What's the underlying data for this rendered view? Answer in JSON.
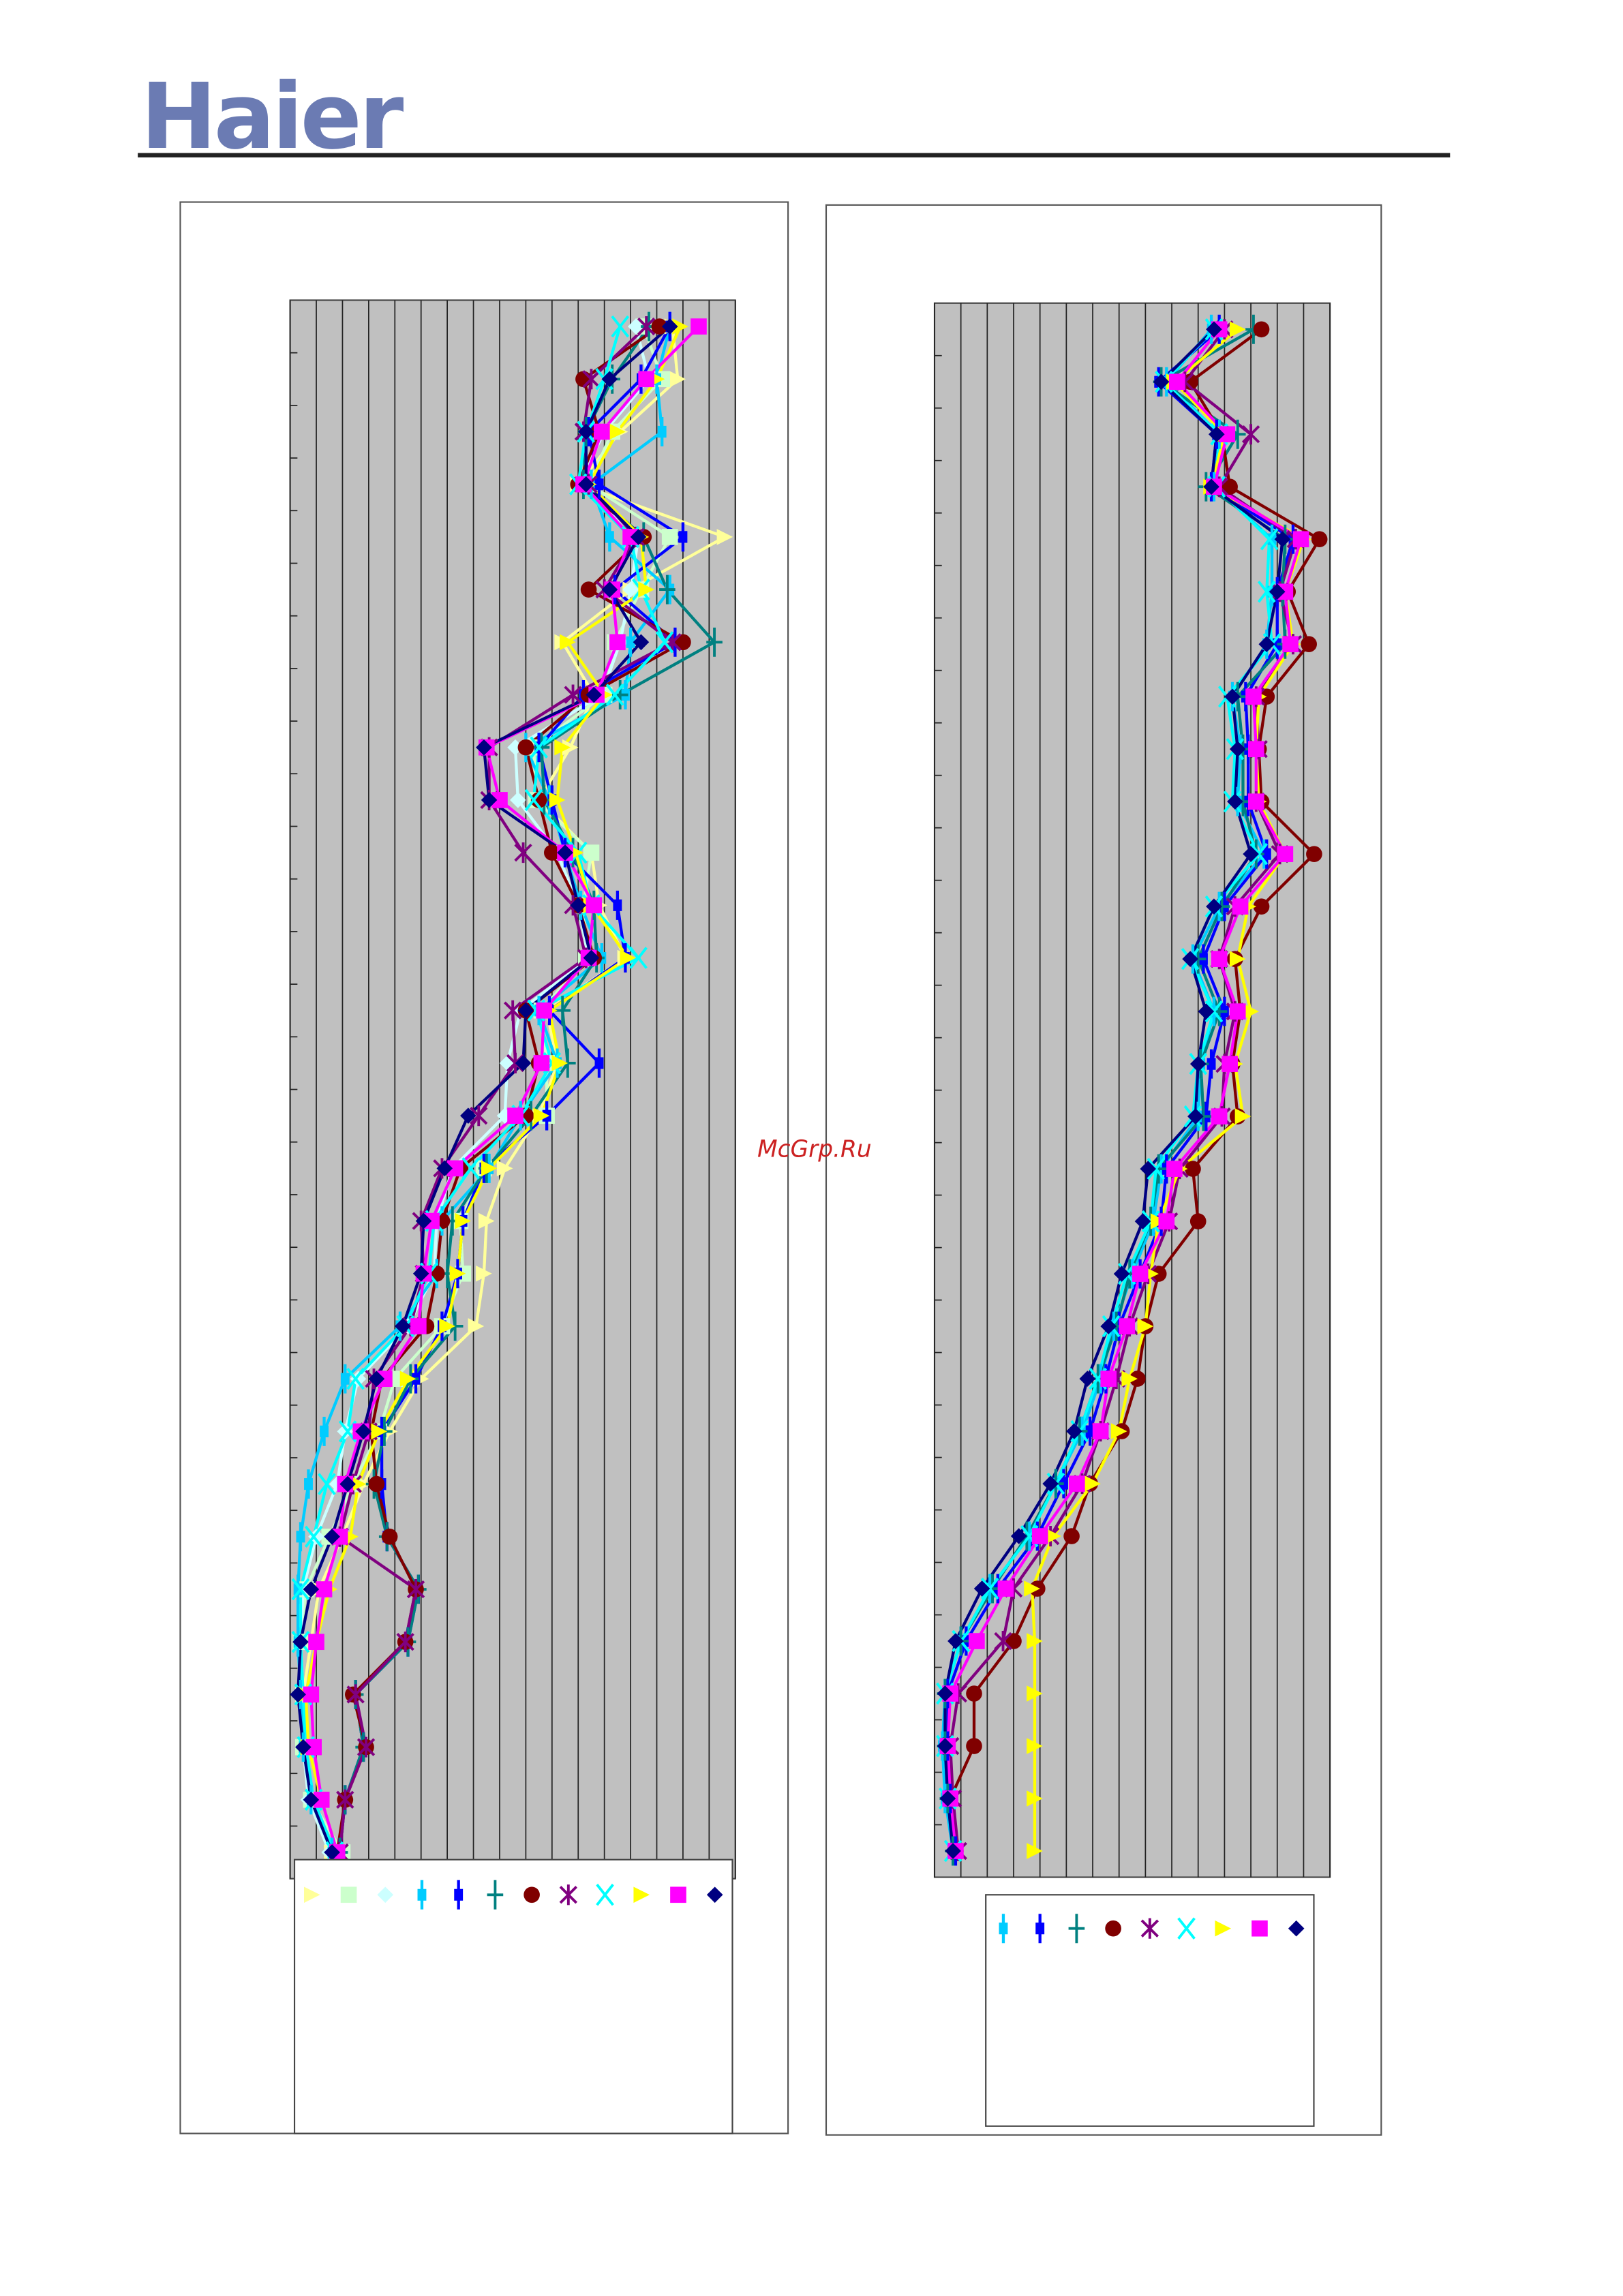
{
  "header": {
    "logo": "Haier"
  },
  "watermark": "McGrp.Ru",
  "chart_data": [
    {
      "type": "line",
      "orientation": "horizontal",
      "grid": true,
      "categories": [
        null,
        null,
        null,
        null,
        null,
        null,
        null,
        null,
        null,
        null,
        null,
        null,
        null,
        null,
        null,
        null,
        null,
        null,
        null,
        null,
        null,
        null,
        null,
        null,
        null,
        null,
        null,
        null,
        null,
        null
      ],
      "xlim": [
        0,
        17
      ],
      "xticks": [
        0,
        1,
        2,
        3,
        4,
        5,
        6,
        7,
        8,
        9,
        10,
        11,
        12,
        13,
        14,
        15,
        16,
        17
      ],
      "series": [
        {
          "color": "#ffff99",
          "marker": "triangle",
          "values": [
            14.6,
            14.8,
            12.6,
            11.0,
            16.6,
            13.0,
            10.4,
            11.6,
            10.7,
            9.5,
            11.5,
            11.8,
            12.8,
            9.8,
            10.2,
            9.5,
            8.2,
            7.5,
            7.4,
            7.1,
            5.0,
            3.8,
            2.8,
            2.0,
            1.1,
            0.8,
            0.5,
            0.6,
            0.8,
            1.6
          ]
        },
        {
          "color": "#ccffcc",
          "marker": "square",
          "values": [
            13.5,
            14.2,
            12.3,
            11.4,
            14.5,
            13.4,
            12.4,
            12.0,
            9.3,
            9.4,
            11.5,
            11.2,
            11.3,
            9.6,
            9.8,
            9.8,
            7.4,
            6.5,
            6.6,
            5.8,
            4.0,
            3.4,
            2.4,
            1.5,
            0.6,
            0.4,
            0.5,
            0.5,
            0.8,
            2.0
          ]
        },
        {
          "color": "#ccffff",
          "marker": "diamond",
          "values": [
            13.2,
            13.7,
            12.0,
            11.0,
            13.3,
            13.0,
            12.6,
            11.9,
            8.6,
            8.7,
            10.2,
            11.0,
            11.4,
            8.8,
            8.3,
            8.2,
            6.2,
            5.6,
            5.5,
            4.5,
            2.6,
            2.1,
            1.8,
            1.0,
            0.5,
            0.4,
            0.4,
            0.5,
            0.7,
            1.5
          ]
        },
        {
          "color": "#00ccff",
          "marker": "bar",
          "values": [
            14.5,
            14.0,
            14.2,
            11.5,
            12.2,
            14.5,
            13.0,
            12.8,
            9.0,
            9.9,
            10.5,
            11.1,
            11.9,
            9.5,
            10.2,
            8.8,
            7.6,
            5.8,
            5.6,
            4.2,
            2.1,
            1.3,
            0.7,
            0.4,
            0.3,
            0.3,
            0.4,
            0.5,
            0.8,
            1.6
          ]
        },
        {
          "color": "#0000ff",
          "marker": "bar",
          "values": [
            14.5,
            13.4,
            11.4,
            11.8,
            15.0,
            12.4,
            14.7,
            11.2,
            9.5,
            10.0,
            10.5,
            12.5,
            12.8,
            9.9,
            11.8,
            9.8,
            7.4,
            6.6,
            6.4,
            5.8,
            4.8,
            3.5,
            3.5,
            3.7,
            4.9,
            4.5,
            2.5,
            2.8,
            2.1,
            1.9
          ]
        },
        {
          "color": "#008080",
          "marker": "plus",
          "values": [
            13.7,
            12.3,
            11.3,
            11.2,
            13.5,
            14.4,
            16.2,
            12.6,
            9.6,
            9.7,
            10.8,
            11.6,
            11.7,
            10.4,
            10.6,
            9.2,
            7.5,
            6.2,
            6.0,
            6.3,
            4.6,
            3.6,
            3.2,
            3.7,
            4.9,
            4.5,
            2.5,
            2.8,
            2.1,
            1.9
          ]
        },
        {
          "color": "#800000",
          "marker": "circle",
          "values": [
            14.1,
            11.2,
            11.8,
            11.0,
            13.5,
            11.4,
            15.0,
            11.4,
            9.0,
            9.5,
            10.0,
            11.0,
            11.6,
            9.0,
            9.5,
            9.0,
            6.5,
            5.8,
            5.6,
            5.2,
            3.5,
            3.1,
            3.3,
            3.8,
            4.8,
            4.4,
            2.4,
            2.9,
            2.1,
            1.8
          ]
        },
        {
          "color": "#800080",
          "marker": "star",
          "values": [
            13.6,
            11.5,
            11.2,
            11.4,
            13.2,
            12.0,
            14.6,
            10.8,
            7.6,
            7.6,
            8.9,
            10.8,
            11.3,
            8.5,
            8.6,
            7.2,
            5.8,
            5.0,
            5.1,
            4.6,
            3.2,
            3.0,
            2.4,
            1.9,
            4.8,
            4.4,
            2.5,
            2.9,
            2.1,
            1.9
          ]
        },
        {
          "color": "#00ffff",
          "marker": "x",
          "values": [
            12.6,
            12.0,
            11.3,
            11.0,
            13.0,
            13.4,
            14.3,
            12.4,
            9.5,
            9.3,
            11.0,
            11.5,
            13.3,
            9.4,
            10.0,
            8.8,
            6.9,
            5.5,
            5.3,
            4.4,
            2.5,
            2.2,
            1.4,
            0.9,
            0.4,
            0.4,
            0.5,
            0.6,
            0.9,
            1.7
          ]
        },
        {
          "color": "#ffff00",
          "marker": "triangle",
          "values": [
            14.9,
            14.0,
            12.5,
            11.4,
            13.4,
            13.6,
            10.6,
            12.0,
            10.4,
            10.2,
            10.9,
            11.5,
            12.9,
            9.9,
            10.3,
            9.6,
            7.6,
            6.6,
            6.4,
            6.0,
            4.5,
            3.4,
            2.6,
            2.3,
            1.5,
            1.0,
            0.6,
            0.7,
            1.2,
            1.8
          ]
        },
        {
          "color": "#ff00ff",
          "marker": "square",
          "values": [
            15.6,
            13.6,
            11.9,
            11.2,
            13.0,
            12.3,
            12.5,
            11.7,
            7.5,
            8.0,
            10.5,
            11.6,
            11.4,
            9.7,
            9.6,
            8.6,
            6.3,
            5.4,
            5.1,
            4.9,
            3.6,
            2.7,
            2.1,
            1.9,
            1.3,
            1.0,
            0.8,
            0.9,
            1.2,
            1.8
          ]
        },
        {
          "color": "#000080",
          "marker": "diamond",
          "values": [
            14.5,
            12.2,
            11.3,
            11.3,
            13.3,
            12.2,
            13.4,
            11.6,
            7.4,
            7.6,
            10.5,
            11.0,
            11.5,
            9.0,
            8.9,
            6.8,
            5.9,
            5.1,
            5.0,
            4.3,
            3.3,
            2.8,
            2.2,
            1.6,
            0.8,
            0.4,
            0.3,
            0.5,
            0.8,
            1.6
          ]
        }
      ]
    },
    {
      "type": "line",
      "orientation": "horizontal",
      "grid": true,
      "categories": [
        null,
        null,
        null,
        null,
        null,
        null,
        null,
        null,
        null,
        null,
        null,
        null,
        null,
        null,
        null,
        null,
        null,
        null,
        null,
        null,
        null,
        null,
        null,
        null,
        null,
        null,
        null,
        null,
        null,
        null
      ],
      "xlim": [
        0,
        15
      ],
      "xticks": [
        0,
        1,
        2,
        3,
        4,
        5,
        6,
        7,
        8,
        9,
        10,
        11,
        12,
        13,
        14,
        15
      ],
      "series": [
        {
          "color": "#00ccff",
          "marker": "bar",
          "values": [
            10.5,
            8.8,
            10.8,
            10.6,
            12.8,
            12.8,
            12.6,
            11.3,
            11.6,
            11.5,
            12.5,
            10.8,
            9.8,
            10.6,
            10.1,
            10.0,
            8.6,
            8.3,
            7.5,
            6.8,
            6.3,
            5.6,
            4.6,
            3.6,
            2.1,
            1.0,
            0.4,
            0.3,
            0.4,
            0.7
          ]
        },
        {
          "color": "#0000ff",
          "marker": "bar",
          "values": [
            10.8,
            8.5,
            10.7,
            10.5,
            13.6,
            13.0,
            13.0,
            11.8,
            11.9,
            11.9,
            12.6,
            11.0,
            10.2,
            11.0,
            10.5,
            10.3,
            8.8,
            8.6,
            7.8,
            7.0,
            6.5,
            5.9,
            4.9,
            3.9,
            2.4,
            1.2,
            0.5,
            0.5,
            0.6,
            0.8
          ]
        },
        {
          "color": "#008080",
          "marker": "plus",
          "values": [
            12.1,
            8.6,
            11.5,
            10.3,
            13.3,
            13.2,
            13.3,
            11.5,
            11.7,
            11.7,
            12.2,
            10.9,
            10.0,
            10.8,
            10.1,
            10.2,
            8.5,
            8.2,
            7.4,
            6.9,
            6.2,
            5.5,
            4.6,
            3.5,
            2.2,
            1.0,
            0.4,
            0.4,
            0.5,
            0.7
          ]
        },
        {
          "color": "#800000",
          "marker": "circle",
          "values": [
            12.4,
            9.7,
            10.9,
            11.2,
            14.6,
            13.4,
            14.2,
            12.6,
            12.3,
            12.4,
            14.4,
            12.4,
            11.4,
            11.6,
            11.3,
            11.5,
            9.8,
            10.0,
            8.5,
            8.0,
            7.7,
            7.1,
            5.9,
            5.2,
            3.9,
            3.0,
            1.5,
            1.5,
            0.6,
            0.8
          ]
        },
        {
          "color": "#800080",
          "marker": "star",
          "values": [
            11.0,
            9.5,
            12.0,
            10.8,
            13.7,
            13.1,
            13.6,
            12.2,
            12.3,
            12.2,
            13.1,
            11.4,
            10.8,
            11.4,
            11.0,
            10.9,
            9.3,
            8.9,
            8.1,
            7.4,
            6.9,
            6.3,
            5.6,
            4.4,
            3.0,
            2.6,
            0.9,
            0.6,
            0.7,
            0.9
          ]
        },
        {
          "color": "#00ffff",
          "marker": "x",
          "values": [
            10.6,
            8.7,
            10.8,
            10.7,
            12.7,
            12.6,
            12.8,
            11.1,
            11.4,
            11.3,
            12.3,
            10.6,
            9.7,
            10.6,
            10.0,
            9.8,
            8.4,
            8.2,
            7.3,
            6.7,
            6.2,
            5.5,
            4.6,
            3.6,
            2.1,
            1.0,
            0.4,
            0.4,
            0.5,
            0.7
          ]
        },
        {
          "color": "#ffff00",
          "marker": "triangle",
          "values": [
            11.5,
            9.1,
            11.0,
            10.5,
            14.0,
            13.3,
            13.6,
            12.3,
            12.2,
            12.3,
            13.3,
            11.9,
            11.5,
            12.0,
            11.4,
            11.7,
            9.3,
            8.5,
            8.2,
            8.0,
            7.4,
            7.0,
            6.0,
            4.5,
            3.7,
            3.8,
            3.8,
            3.8,
            3.8,
            3.8
          ]
        },
        {
          "color": "#ff00ff",
          "marker": "square",
          "values": [
            10.8,
            9.2,
            11.1,
            10.6,
            13.9,
            13.3,
            13.5,
            12.1,
            12.2,
            12.2,
            13.3,
            11.6,
            10.8,
            11.5,
            11.2,
            10.8,
            9.1,
            8.8,
            7.8,
            7.3,
            6.6,
            6.3,
            5.4,
            4.0,
            2.7,
            1.6,
            0.6,
            0.5,
            0.6,
            0.8
          ]
        },
        {
          "color": "#000080",
          "marker": "diamond",
          "values": [
            10.6,
            8.6,
            10.7,
            10.5,
            13.2,
            13.0,
            12.6,
            11.3,
            11.5,
            11.4,
            12.0,
            10.6,
            9.7,
            10.3,
            10.0,
            9.9,
            8.1,
            7.9,
            7.1,
            6.6,
            5.8,
            5.3,
            4.4,
            3.2,
            1.8,
            0.8,
            0.4,
            0.4,
            0.5,
            0.7
          ]
        }
      ]
    }
  ]
}
